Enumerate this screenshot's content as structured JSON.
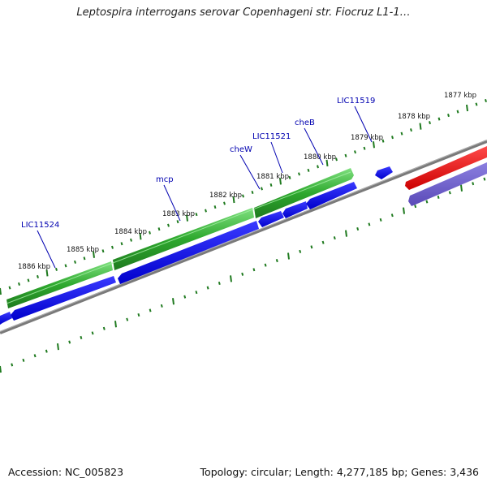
{
  "title": "Leptospira interrogans serovar Copenhageni str. Fiocruz L1-1…",
  "footer": {
    "accession_label": "Accession:",
    "accession": "NC_005823",
    "topology_label": "Topology:",
    "topology": "circular",
    "length_label": "Length:",
    "length": "4,277,185 bp",
    "genes_label": "Genes:",
    "genes": "3,436"
  },
  "kbp_labels": [
    "1886 kbp",
    "1885 kbp",
    "1884 kbp",
    "1883 kbp",
    "1882 kbp",
    "1881 kbp",
    "1880 kbp",
    "1879 kbp",
    "1878 kbp",
    "1877 kbp"
  ],
  "gene_labels": [
    "LIC11524",
    "mcp",
    "cheW",
    "LIC11521",
    "cheB",
    "LIC11519"
  ],
  "colors": {
    "forward_gene": "#3ec83e",
    "reverse_gene": "#0000ee",
    "trna": "#ee0000",
    "other": "#6a5acd",
    "backbone": "#808080",
    "ticks": "#1f7a1f",
    "labels": "#0000b0"
  }
}
